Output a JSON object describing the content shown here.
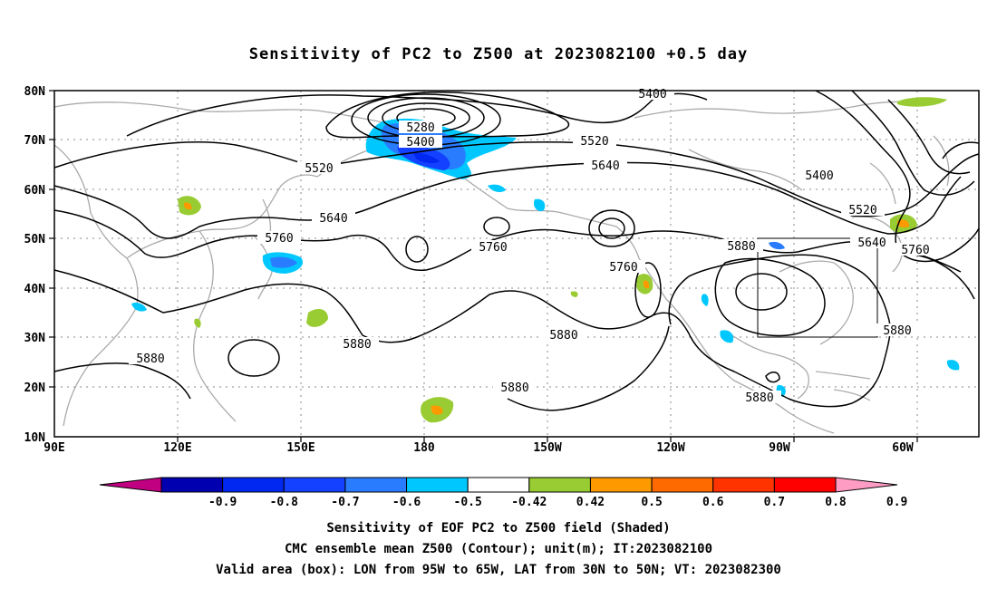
{
  "title": "Sensitivity of PC2 to Z500 at 2023082100 +0.5 day",
  "lat_labels": [
    "80N",
    "70N",
    "60N",
    "50N",
    "40N",
    "30N",
    "20N",
    "10N"
  ],
  "lon_labels": [
    "90E",
    "120E",
    "150E",
    "180",
    "150W",
    "120W",
    "90W",
    "60W"
  ],
  "contour_labels": [
    "5280",
    "5400",
    "5400",
    "5400",
    "5520",
    "5520",
    "5520",
    "5640",
    "5640",
    "5640",
    "5760",
    "5760",
    "5760",
    "5760",
    "5880",
    "5880",
    "5880",
    "5880",
    "5880",
    "5880"
  ],
  "colorbar": {
    "labels": [
      "-0.9",
      "-0.8",
      "-0.7",
      "-0.6",
      "-0.5",
      "-0.42",
      "0.42",
      "0.5",
      "0.6",
      "0.7",
      "0.8",
      "0.9"
    ],
    "colors": [
      "#c00080",
      "#0000b0",
      "#0028f0",
      "#1440ff",
      "#2a7cff",
      "#00c8ff",
      "#ffffff",
      "#99cc33",
      "#ff9900",
      "#ff6a00",
      "#ff3300",
      "#ff0000",
      "#ff9cc4"
    ]
  },
  "valid_box": {
    "lon_west": "95W",
    "lon_east": "65W",
    "lat_south": "30N",
    "lat_north": "50N"
  },
  "captions": [
    "Sensitivity of EOF PC2 to Z500 field (Shaded)",
    "CMC ensemble mean Z500 (Contour); unit(m); IT:2023082100",
    "Valid area (box): LON from 95W to 65W, LAT from 30N to 50N; VT: 2023082300"
  ]
}
